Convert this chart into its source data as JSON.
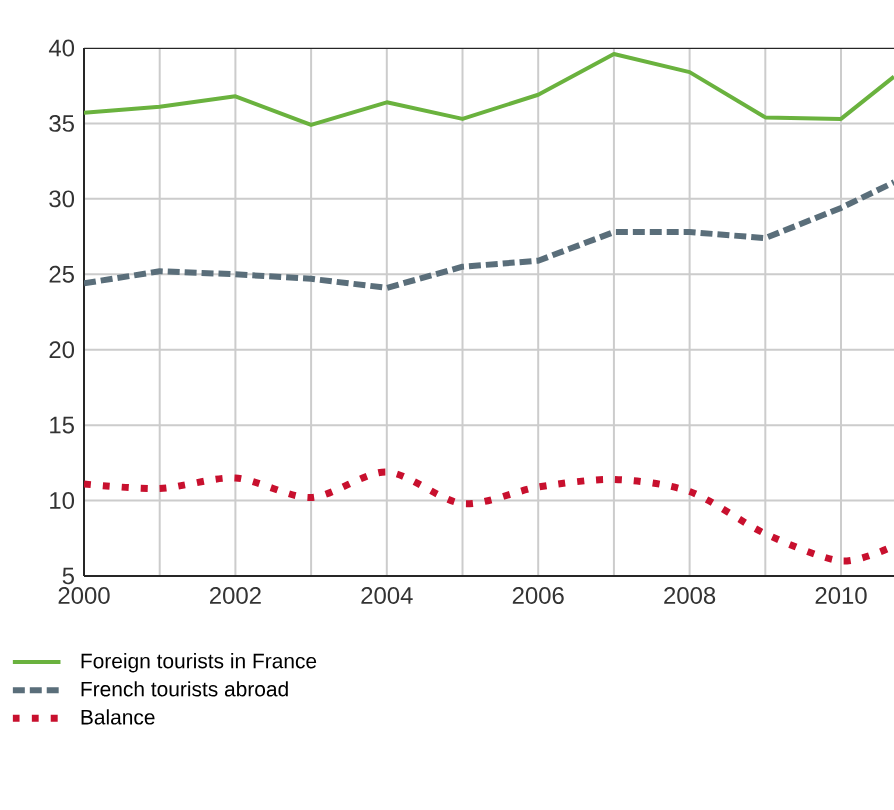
{
  "chart_data": {
    "type": "line",
    "x": [
      2000,
      2001,
      2002,
      2003,
      2004,
      2005,
      2006,
      2007,
      2008,
      2009,
      2010,
      2010.7
    ],
    "series": [
      {
        "name": "Foreign tourists in France",
        "color": "#6ab23e",
        "line_style": "solid",
        "values": [
          35.7,
          36.1,
          36.8,
          34.9,
          36.4,
          35.3,
          36.9,
          39.6,
          38.4,
          35.4,
          35.3,
          38.1
        ]
      },
      {
        "name": "French tourists abroad",
        "color": "#5a6e7a",
        "line_style": "dashed",
        "values": [
          24.4,
          25.2,
          25.0,
          24.7,
          24.1,
          25.5,
          25.9,
          27.8,
          27.8,
          27.4,
          29.4,
          31.1
        ]
      },
      {
        "name": "Balance",
        "color": "#c8102e",
        "line_style": "dotted",
        "values": [
          11.1,
          10.8,
          11.5,
          10.2,
          11.9,
          9.8,
          10.9,
          11.4,
          10.6,
          7.8,
          6.0,
          7.0
        ]
      }
    ],
    "xlim": [
      2000,
      2010.7
    ],
    "xticks": [
      2000,
      2002,
      2004,
      2006,
      2008,
      2010
    ],
    "ylim": [
      5,
      40
    ],
    "yticks": [
      5,
      10,
      15,
      20,
      25,
      30,
      35,
      40
    ],
    "grid": true,
    "legend": "bottom",
    "marker": "none"
  }
}
